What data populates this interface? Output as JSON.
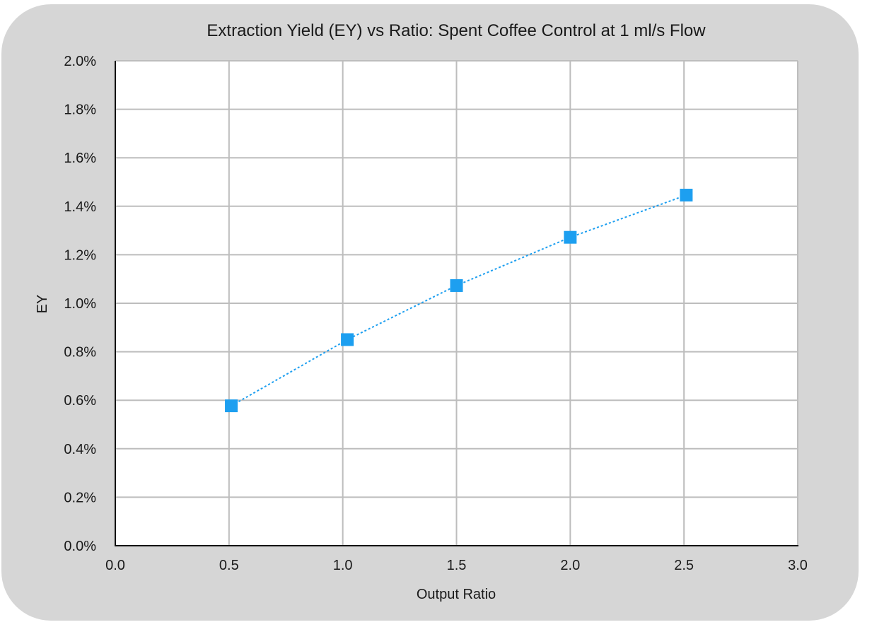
{
  "chart_data": {
    "type": "line",
    "title": "Extraction Yield (EY) vs Ratio: Spent Coffee Control at 1 ml/s Flow",
    "xlabel": "Output Ratio",
    "ylabel": "EY",
    "xlim": [
      0,
      3.0
    ],
    "ylim": [
      0,
      0.02
    ],
    "x_ticks": [
      "0.0",
      "0.5",
      "1.0",
      "1.5",
      "2.0",
      "2.5",
      "3.0"
    ],
    "y_ticks": [
      "0.0%",
      "0.2%",
      "0.4%",
      "0.6%",
      "0.8%",
      "1.0%",
      "1.2%",
      "1.4%",
      "1.6%",
      "1.8%",
      "2.0%"
    ],
    "grid": true,
    "legend": "none",
    "marker": "square",
    "line_style": "dotted",
    "series": [
      {
        "color": "#1d9ff0",
        "x": [
          0.51,
          1.02,
          1.5,
          2.0,
          2.51
        ],
        "y": [
          0.00577,
          0.0085,
          0.01073,
          0.01272,
          0.01446
        ]
      }
    ]
  }
}
